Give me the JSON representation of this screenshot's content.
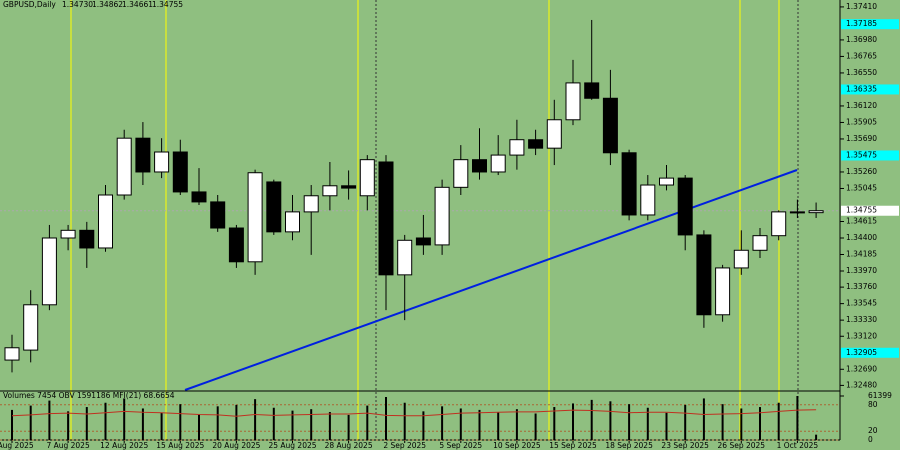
{
  "chart_data": [
    {
      "type": "candlestick",
      "title": "GBPUSD,Daily",
      "header_values": [
        "1.34730",
        "1.34862",
        "1.34661",
        "1.34755"
      ],
      "categories": [
        "4 Aug 2025",
        null,
        null,
        "7 Aug 2025",
        null,
        null,
        "12 Aug 2025",
        null,
        null,
        "15 Aug 2025",
        null,
        null,
        "20 Aug 2025",
        null,
        null,
        "25 Aug 2025",
        null,
        null,
        "28 Aug 2025",
        null,
        null,
        "2 Sep 2025",
        null,
        null,
        "5 Sep 2025",
        null,
        null,
        "10 Sep 2025",
        null,
        null,
        "15 Sep 2025",
        null,
        null,
        "18 Sep 2025",
        null,
        null,
        "23 Sep 2025",
        null,
        null,
        "26 Sep 2025",
        null,
        null,
        "1 Oct 2025",
        null
      ],
      "open": [
        1.3281,
        1.3294,
        1.3353,
        1.344,
        1.345,
        1.3427,
        1.3496,
        1.357,
        1.3526,
        1.3552,
        1.35,
        1.3487,
        1.3453,
        1.3409,
        1.3513,
        1.3448,
        1.3474,
        1.3495,
        1.3508,
        1.3495,
        1.3539,
        1.3392,
        1.344,
        1.3431,
        1.3506,
        1.3542,
        1.3526,
        1.3548,
        1.3568,
        1.3557,
        1.3594,
        1.3642,
        1.3622,
        1.3551,
        1.347,
        1.3509,
        1.3518,
        1.3444,
        1.334,
        1.3401,
        1.3424,
        1.3443,
        1.3474,
        1.3473
      ],
      "high": [
        1.3314,
        1.3372,
        1.3457,
        1.3457,
        1.3461,
        1.3509,
        1.3581,
        1.3591,
        1.357,
        1.3568,
        1.3531,
        1.3496,
        1.3457,
        1.3529,
        1.3516,
        1.3496,
        1.3509,
        1.3539,
        1.3528,
        1.3548,
        1.3548,
        1.3444,
        1.347,
        1.3516,
        1.3561,
        1.3583,
        1.3574,
        1.3594,
        1.3581,
        1.362,
        1.3672,
        1.3724,
        1.3659,
        1.3555,
        1.3522,
        1.3535,
        1.3522,
        1.345,
        1.3405,
        1.345,
        1.3453,
        1.3476,
        1.349,
        1.34862
      ],
      "low": [
        1.3265,
        1.3278,
        1.3346,
        1.3424,
        1.3401,
        1.3422,
        1.349,
        1.3509,
        1.3518,
        1.3496,
        1.3483,
        1.3448,
        1.3401,
        1.3392,
        1.3444,
        1.3437,
        1.3418,
        1.3476,
        1.349,
        1.3476,
        1.3346,
        1.3333,
        1.3418,
        1.3418,
        1.3496,
        1.3516,
        1.3522,
        1.3529,
        1.3548,
        1.3535,
        1.3587,
        1.362,
        1.3535,
        1.3463,
        1.3463,
        1.3502,
        1.3424,
        1.3323,
        1.3331,
        1.3392,
        1.3414,
        1.3437,
        1.3466,
        1.34661
      ],
      "close": [
        1.3297,
        1.3353,
        1.344,
        1.345,
        1.3427,
        1.3496,
        1.357,
        1.3526,
        1.3552,
        1.35,
        1.3487,
        1.3453,
        1.3409,
        1.3525,
        1.3448,
        1.3474,
        1.3495,
        1.3508,
        1.3505,
        1.3542,
        1.3392,
        1.3437,
        1.3431,
        1.3506,
        1.3542,
        1.3526,
        1.3548,
        1.3568,
        1.3557,
        1.3594,
        1.3642,
        1.3622,
        1.3551,
        1.347,
        1.3509,
        1.3518,
        1.3444,
        1.334,
        1.3401,
        1.3424,
        1.3443,
        1.3474,
        1.3473,
        1.34755
      ],
      "up_color": "#ffffff",
      "down_color": "#000000",
      "ylim": [
        1.3242,
        1.375
      ],
      "yticks": [
        {
          "value": 1.3741,
          "label": "1.37410"
        },
        {
          "value": 1.3698,
          "label": "1.36980"
        },
        {
          "value": 1.36765,
          "label": "1.36765"
        },
        {
          "value": 1.3655,
          "label": "1.36550"
        },
        {
          "value": 1.3612,
          "label": "1.36120"
        },
        {
          "value": 1.35905,
          "label": "1.35905"
        },
        {
          "value": 1.3569,
          "label": "1.35690"
        },
        {
          "value": 1.3526,
          "label": "1.35260"
        },
        {
          "value": 1.35045,
          "label": "1.35045"
        },
        {
          "value": 1.34615,
          "label": "1.34615"
        },
        {
          "value": 1.344,
          "label": "1.34400"
        },
        {
          "value": 1.34185,
          "label": "1.34185"
        },
        {
          "value": 1.3397,
          "label": "1.33970"
        },
        {
          "value": 1.3376,
          "label": "1.33760"
        },
        {
          "value": 1.33545,
          "label": "1.33545"
        },
        {
          "value": 1.3333,
          "label": "1.33330"
        },
        {
          "value": 1.3312,
          "label": "1.33120"
        },
        {
          "value": 1.3269,
          "label": "1.32690"
        },
        {
          "value": 1.3248,
          "label": "1.32480"
        }
      ],
      "marked_levels": [
        {
          "value": 1.37185,
          "label": "1.37185"
        },
        {
          "value": 1.36335,
          "label": "1.36335"
        },
        {
          "value": 1.35475,
          "label": "1.35475"
        },
        {
          "value": 1.32905,
          "label": "1.32905"
        }
      ],
      "marked_color": "#00ffff"
    },
    {
      "type": "volume",
      "title": "Volumes 7454  OBV 1591186  MFI(21) 68.6654",
      "values": [
        42000,
        48000,
        55000,
        40000,
        46000,
        52000,
        58000,
        44000,
        38000,
        50000,
        36000,
        47000,
        49000,
        57000,
        45000,
        41000,
        43000,
        39000,
        35000,
        48000,
        60000,
        52000,
        40000,
        47000,
        44000,
        42000,
        39000,
        43000,
        37000,
        46000,
        51000,
        56000,
        54000,
        50000,
        45000,
        38000,
        49000,
        58000,
        50000,
        44000,
        46000,
        52000,
        61399,
        7454
      ],
      "mfi": [
        55,
        57,
        60,
        61,
        59,
        62,
        65,
        63,
        62,
        60,
        58,
        57,
        54,
        58,
        56,
        57,
        58,
        59,
        59,
        61,
        56,
        55,
        55,
        58,
        61,
        62,
        63,
        64,
        64,
        66,
        68,
        67,
        65,
        62,
        63,
        63,
        61,
        58,
        59,
        60,
        62,
        65,
        68,
        68.6654
      ],
      "color": "#000000",
      "mfi_color": "#c03020",
      "ylim": [
        0,
        61399
      ],
      "yticks": [
        61399
      ],
      "y2lim": [
        0,
        100
      ],
      "y2ticks": [
        80,
        20,
        0
      ]
    }
  ]
}
